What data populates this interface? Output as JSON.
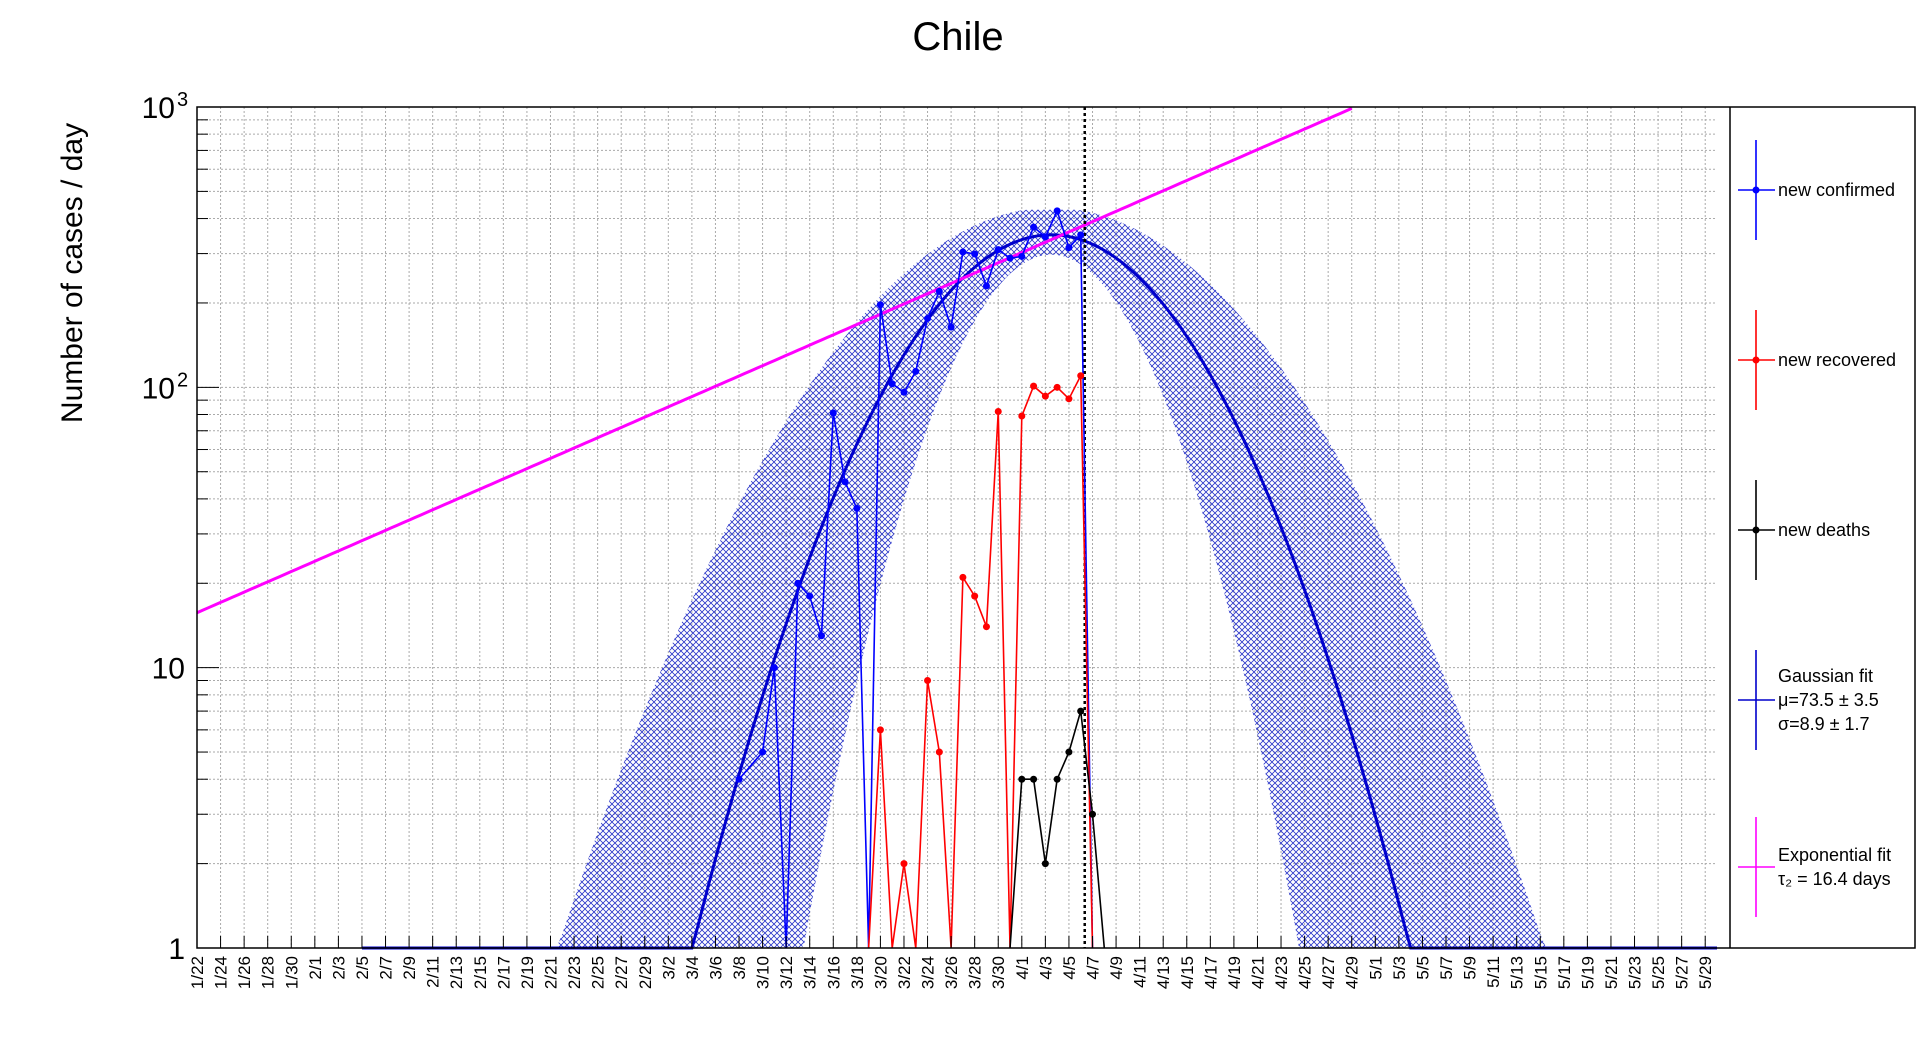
{
  "chart_data": {
    "type": "line",
    "title": "Chile",
    "xlabel": "",
    "ylabel": "Number of cases / day",
    "yscale": "log",
    "ylim": [
      1,
      1000
    ],
    "grid": true,
    "x_tick_labels": [
      "1/22",
      "1/24",
      "1/26",
      "1/28",
      "1/30",
      "2/1",
      "2/3",
      "2/5",
      "2/7",
      "2/9",
      "2/11",
      "2/13",
      "2/15",
      "2/17",
      "2/19",
      "2/21",
      "2/23",
      "2/25",
      "2/27",
      "2/29",
      "3/2",
      "3/4",
      "3/6",
      "3/8",
      "3/10",
      "3/12",
      "3/14",
      "3/16",
      "3/18",
      "3/20",
      "3/22",
      "3/24",
      "3/26",
      "3/28",
      "3/30",
      "4/1",
      "4/3",
      "4/5",
      "4/7",
      "4/9",
      "4/11",
      "4/13",
      "4/15",
      "4/17",
      "4/19",
      "4/21",
      "4/23",
      "4/25",
      "4/27",
      "4/29",
      "5/1",
      "5/3",
      "5/5",
      "5/7",
      "5/9",
      "5/11",
      "5/13",
      "5/15",
      "5/17",
      "5/19",
      "5/21",
      "5/23",
      "5/25",
      "5/27",
      "5/29"
    ],
    "y_tick_labels": [
      {
        "label": "1",
        "sup": ""
      },
      {
        "label": "10",
        "sup": ""
      },
      {
        "label": "10",
        "sup": "2"
      },
      {
        "label": "10",
        "sup": "3"
      }
    ],
    "x_range": [
      "1/22",
      "5/30"
    ],
    "current_date_marker": "4/6",
    "series": [
      {
        "name": "new confirmed",
        "color": "#0000ff",
        "points": [
          [
            "3/8",
            4
          ],
          [
            "3/10",
            5
          ],
          [
            "3/11",
            10
          ],
          [
            "3/12",
            1
          ],
          [
            "3/13",
            20
          ],
          [
            "3/14",
            18
          ],
          [
            "3/15",
            13
          ],
          [
            "3/16",
            81
          ],
          [
            "3/17",
            46
          ],
          [
            "3/18",
            37
          ],
          [
            "3/19",
            1
          ],
          [
            "3/20",
            197
          ],
          [
            "3/21",
            103
          ],
          [
            "3/22",
            96
          ],
          [
            "3/23",
            114
          ],
          [
            "3/24",
            176
          ],
          [
            "3/25",
            220
          ],
          [
            "3/26",
            164
          ],
          [
            "3/27",
            304
          ],
          [
            "3/28",
            299
          ],
          [
            "3/29",
            230
          ],
          [
            "3/30",
            310
          ],
          [
            "3/31",
            289
          ],
          [
            "4/1",
            293
          ],
          [
            "4/2",
            373
          ],
          [
            "4/3",
            344
          ],
          [
            "4/4",
            426
          ],
          [
            "4/5",
            315
          ],
          [
            "4/6",
            350
          ],
          [
            "4/7",
            1
          ]
        ]
      },
      {
        "name": "new recovered",
        "color": "#ff0000",
        "points": [
          [
            "3/19",
            1
          ],
          [
            "3/20",
            6
          ],
          [
            "3/21",
            1
          ],
          [
            "3/22",
            2
          ],
          [
            "3/23",
            1
          ],
          [
            "3/24",
            9
          ],
          [
            "3/25",
            5
          ],
          [
            "3/26",
            1
          ],
          [
            "3/27",
            21
          ],
          [
            "3/28",
            18
          ],
          [
            "3/29",
            14
          ],
          [
            "3/30",
            82
          ],
          [
            "3/31",
            1
          ],
          [
            "4/1",
            79
          ],
          [
            "4/2",
            101
          ],
          [
            "4/3",
            93
          ],
          [
            "4/4",
            100
          ],
          [
            "4/5",
            91
          ],
          [
            "4/6",
            110
          ],
          [
            "4/7",
            1
          ]
        ]
      },
      {
        "name": "new deaths",
        "color": "#000000",
        "points": [
          [
            "3/31",
            1
          ],
          [
            "4/1",
            4
          ],
          [
            "4/2",
            4
          ],
          [
            "4/3",
            2
          ],
          [
            "4/4",
            4
          ],
          [
            "4/5",
            5
          ],
          [
            "4/6",
            7
          ],
          [
            "4/7",
            3
          ],
          [
            "4/8",
            1
          ]
        ]
      },
      {
        "name": "Gaussian fit",
        "color": "#0000cc",
        "mu": "73.5 ± 3.5",
        "sigma": "8.9 ± 1.7"
      },
      {
        "name": "Exponential fit",
        "color": "#ff00ff",
        "tau2": "16.4 days"
      }
    ],
    "legend": {
      "position": "right",
      "entries": [
        {
          "color": "#0000ff",
          "lines": [
            "new confirmed"
          ]
        },
        {
          "color": "#ff0000",
          "lines": [
            "new recovered"
          ]
        },
        {
          "color": "#000000",
          "lines": [
            "new deaths"
          ]
        },
        {
          "color": "#0000cc",
          "lines": [
            "Gaussian fit",
            "μ=73.5 ± 3.5",
            "σ=8.9 ± 1.7"
          ]
        },
        {
          "color": "#ff00ff",
          "lines": [
            "Exponential fit",
            "τ₂ = 16.4 days"
          ]
        }
      ]
    }
  }
}
